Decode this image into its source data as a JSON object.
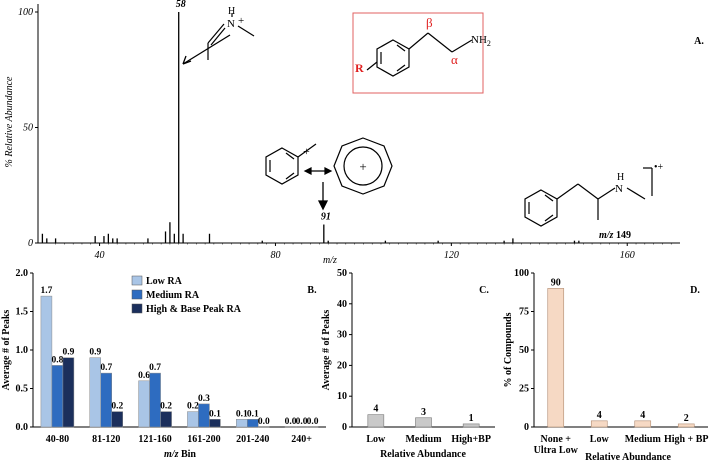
{
  "chart_data": [
    {
      "type": "bar",
      "panel_label": "A.",
      "xlabel": "m/z",
      "ylabel": "% Relative Abundance",
      "xlim": [
        26,
        172
      ],
      "ylim": [
        0,
        100
      ],
      "x_ticks": [
        "40",
        "80",
        "120",
        "160"
      ],
      "y_ticks": [
        "0",
        "50",
        "100"
      ],
      "peaks": [
        {
          "mz": 27,
          "ab": 4
        },
        {
          "mz": 28,
          "ab": 2
        },
        {
          "mz": 30,
          "ab": 2
        },
        {
          "mz": 39,
          "ab": 3
        },
        {
          "mz": 41,
          "ab": 3
        },
        {
          "mz": 42,
          "ab": 4
        },
        {
          "mz": 43,
          "ab": 2
        },
        {
          "mz": 44,
          "ab": 2
        },
        {
          "mz": 51,
          "ab": 2
        },
        {
          "mz": 55,
          "ab": 5
        },
        {
          "mz": 56,
          "ab": 9
        },
        {
          "mz": 57,
          "ab": 4
        },
        {
          "mz": 58,
          "ab": 100
        },
        {
          "mz": 59,
          "ab": 4
        },
        {
          "mz": 65,
          "ab": 4
        },
        {
          "mz": 77,
          "ab": 1
        },
        {
          "mz": 91,
          "ab": 8
        },
        {
          "mz": 92,
          "ab": 1
        },
        {
          "mz": 105,
          "ab": 1
        },
        {
          "mz": 117,
          "ab": 1
        },
        {
          "mz": 132,
          "ab": 1
        },
        {
          "mz": 134,
          "ab": 2
        },
        {
          "mz": 148,
          "ab": 1
        },
        {
          "mz": 149,
          "ab": 1
        }
      ],
      "peak_labels": [
        {
          "mz": 58,
          "text": "58"
        },
        {
          "mz": 91,
          "text": "91"
        }
      ],
      "annotations": {
        "mz149_prefix": "m/z",
        "mz149_value": "149",
        "iminium_charge": "+",
        "benzyl_charge": "+",
        "tropylium_charge": "+",
        "radical_cation": "•+",
        "iminium_N": "N",
        "iminium_H": "H",
        "parent_N": "N",
        "parent_H": "H",
        "backbone_R": "R",
        "backbone_beta": "β",
        "backbone_alpha": "α",
        "backbone_NH2": "NH",
        "backbone_NH2_sub": "2"
      }
    },
    {
      "type": "bar",
      "panel_label": "B.",
      "xlabel": "m/z Bin",
      "xlabel_italic": "m/z",
      "xlabel_rest": " Bin",
      "ylabel": "Average # of Peaks",
      "ylim": [
        0,
        2
      ],
      "y_ticks": [
        "0.0",
        "0.5",
        "1.0",
        "1.5",
        "2.0"
      ],
      "categories": [
        "40-80",
        "81-120",
        "121-160",
        "161-200",
        "201-240",
        "240+"
      ],
      "series": [
        {
          "name": "Low RA",
          "values": [
            1.7,
            0.9,
            0.6,
            0.2,
            0.1,
            0.0
          ],
          "labels": [
            "1.7",
            "0.9",
            "0.6",
            "0.2",
            "0.1",
            "0.0"
          ],
          "color": "#a9c5e6"
        },
        {
          "name": "Medium RA",
          "values": [
            0.8,
            0.7,
            0.7,
            0.3,
            0.1,
            0.0
          ],
          "labels": [
            "0.8",
            "0.7",
            "0.7",
            "0.3",
            "0.1",
            "0.0"
          ],
          "color": "#2e6cc0"
        },
        {
          "name": "High & Base Peak RA",
          "values": [
            0.9,
            0.2,
            0.2,
            0.1,
            0.0,
            0.0
          ],
          "labels": [
            "0.9",
            "0.2",
            "0.2",
            "0.1",
            "0.0",
            "0.0"
          ],
          "color": "#1b2f5c"
        }
      ],
      "legend_position": "top-center"
    },
    {
      "type": "bar",
      "panel_label": "C.",
      "xlabel": "Relative Abundance",
      "ylabel": "Average # of Peaks",
      "ylim": [
        0,
        50
      ],
      "y_ticks": [
        "0",
        "10",
        "20",
        "30",
        "40",
        "50"
      ],
      "categories": [
        "Low",
        "Medium",
        "High+BP"
      ],
      "values": [
        4,
        3,
        1
      ],
      "labels": [
        "4",
        "3",
        "1"
      ],
      "color": "#c9c9c9"
    },
    {
      "type": "bar",
      "panel_label": "D.",
      "xlabel": "Relative Abundance",
      "ylabel": "% of Compounds",
      "ylim": [
        0,
        100
      ],
      "y_ticks": [
        "0",
        "25",
        "50",
        "75",
        "100"
      ],
      "categories": [
        "None + Ultra Low",
        "Low",
        "Medium",
        "High + BP"
      ],
      "category_lines": [
        [
          "None +",
          "Ultra Low"
        ],
        [
          "Low"
        ],
        [
          "Medium"
        ],
        [
          "High + BP"
        ]
      ],
      "values": [
        90,
        4,
        4,
        2
      ],
      "labels": [
        "90",
        "4",
        "4",
        "2"
      ],
      "color": "#f6d9c4"
    }
  ]
}
